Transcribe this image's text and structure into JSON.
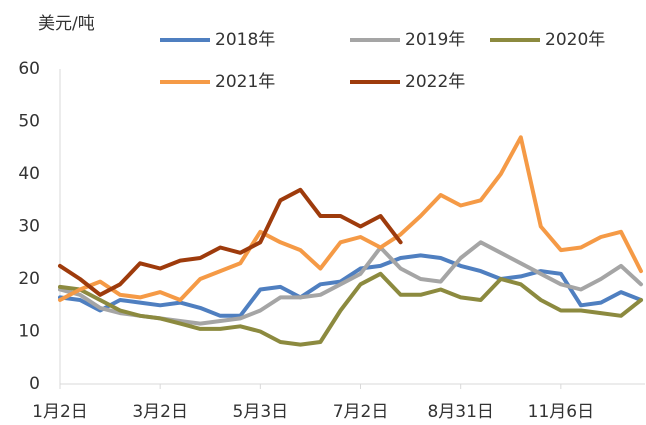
{
  "chart_data": {
    "type": "line",
    "y_label": "美元/吨",
    "x": [
      0,
      10,
      20,
      30,
      40,
      50,
      60,
      70,
      80,
      90,
      100,
      110,
      120,
      130,
      140,
      150,
      160,
      170,
      180,
      190,
      200,
      210,
      220,
      230,
      240,
      250,
      260,
      270,
      280,
      290
    ],
    "xlim": [
      0,
      292
    ],
    "xticks": [
      {
        "value": 0,
        "label": "1月2日"
      },
      {
        "value": 50,
        "label": "3月2日"
      },
      {
        "value": 100,
        "label": "5月3日"
      },
      {
        "value": 150,
        "label": "7月2日"
      },
      {
        "value": 200,
        "label": "8月31日"
      },
      {
        "value": 250,
        "label": "11月6日"
      }
    ],
    "ylim": [
      0,
      60
    ],
    "yticks": [
      0,
      10,
      20,
      30,
      40,
      50,
      60
    ],
    "grid": false,
    "legend": "top",
    "series": [
      {
        "name": "2018年",
        "color": "#4f7fc0",
        "values": [
          16.5,
          16,
          14,
          16,
          15.5,
          15,
          15.5,
          14.5,
          13,
          13,
          18,
          18.5,
          16.5,
          19,
          19.5,
          22,
          22.5,
          24,
          24.5,
          24,
          22.5,
          21.5,
          20,
          20.5,
          21.5,
          21,
          15,
          15.5,
          17.5,
          16
        ]
      },
      {
        "name": "2019年",
        "color": "#a5a5a5",
        "values": [
          18,
          17,
          14.5,
          13.5,
          13,
          12.5,
          12,
          11.5,
          12,
          12.5,
          14,
          16.5,
          16.5,
          17,
          19,
          21,
          26,
          22,
          20,
          19.5,
          24,
          27,
          25,
          23,
          21,
          19,
          18,
          20,
          22.5,
          19
        ]
      },
      {
        "name": "2020年",
        "color": "#8c8a3f",
        "values": [
          18.5,
          18,
          16,
          14,
          13,
          12.5,
          11.5,
          10.5,
          10.5,
          11,
          10,
          8,
          7.5,
          8,
          14,
          19,
          21,
          17,
          17,
          18,
          16.5,
          16,
          20,
          19,
          16,
          14,
          14,
          13.5,
          13,
          16
        ]
      },
      {
        "name": "2021年",
        "color": "#f59a46",
        "values": [
          16,
          18,
          19.5,
          17,
          16.5,
          17.5,
          16,
          20,
          21.5,
          23,
          29,
          27,
          25.5,
          22,
          27,
          28,
          26,
          28.5,
          32,
          36,
          34,
          35,
          40,
          47,
          30,
          25.5,
          26,
          28,
          29,
          21.5
        ]
      },
      {
        "name": "2022年",
        "color": "#9e3b0c",
        "values": [
          22.5,
          20,
          17,
          19,
          23,
          22,
          23.5,
          24,
          26,
          25,
          27,
          35,
          37,
          32,
          32,
          30,
          32,
          27,
          null,
          null,
          null,
          null,
          null,
          null,
          null,
          null,
          null,
          null,
          null,
          null
        ]
      }
    ]
  }
}
